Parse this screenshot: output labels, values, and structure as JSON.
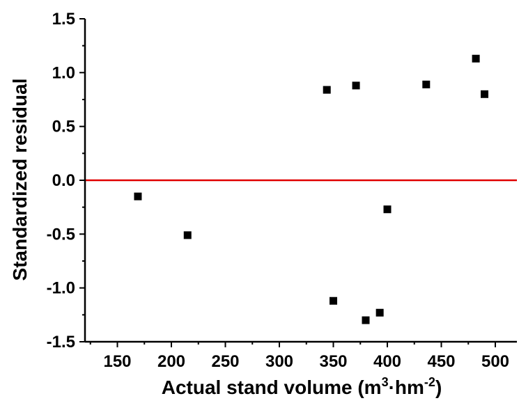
{
  "chart_data": {
    "type": "scatter",
    "title": "",
    "xlabel_main": "Actual stand volume (m",
    "xlabel_sup1": "3",
    "xlabel_mid": "·hm",
    "xlabel_sup2": "-2",
    "xlabel_end": ")",
    "ylabel": "Standardized residual",
    "xlim": [
      120,
      520
    ],
    "ylim": [
      -1.5,
      1.5
    ],
    "x_ticks": [
      "150",
      "200",
      "250",
      "300",
      "350",
      "400",
      "450",
      "500"
    ],
    "y_ticks": [
      "-1.5",
      "-1.0",
      "-0.5",
      "0.0",
      "0.5",
      "1.0",
      "1.5"
    ],
    "reference_line": {
      "y": 0,
      "color": "#e00000"
    },
    "grid": false,
    "points": [
      {
        "x": 169,
        "y": -0.15
      },
      {
        "x": 215,
        "y": -0.51
      },
      {
        "x": 344,
        "y": 0.84
      },
      {
        "x": 350,
        "y": -1.12
      },
      {
        "x": 371,
        "y": 0.88
      },
      {
        "x": 380,
        "y": -1.3
      },
      {
        "x": 393,
        "y": -1.23
      },
      {
        "x": 400,
        "y": -0.27
      },
      {
        "x": 436,
        "y": 0.89
      },
      {
        "x": 482,
        "y": 1.13
      },
      {
        "x": 490,
        "y": 0.8
      }
    ]
  }
}
